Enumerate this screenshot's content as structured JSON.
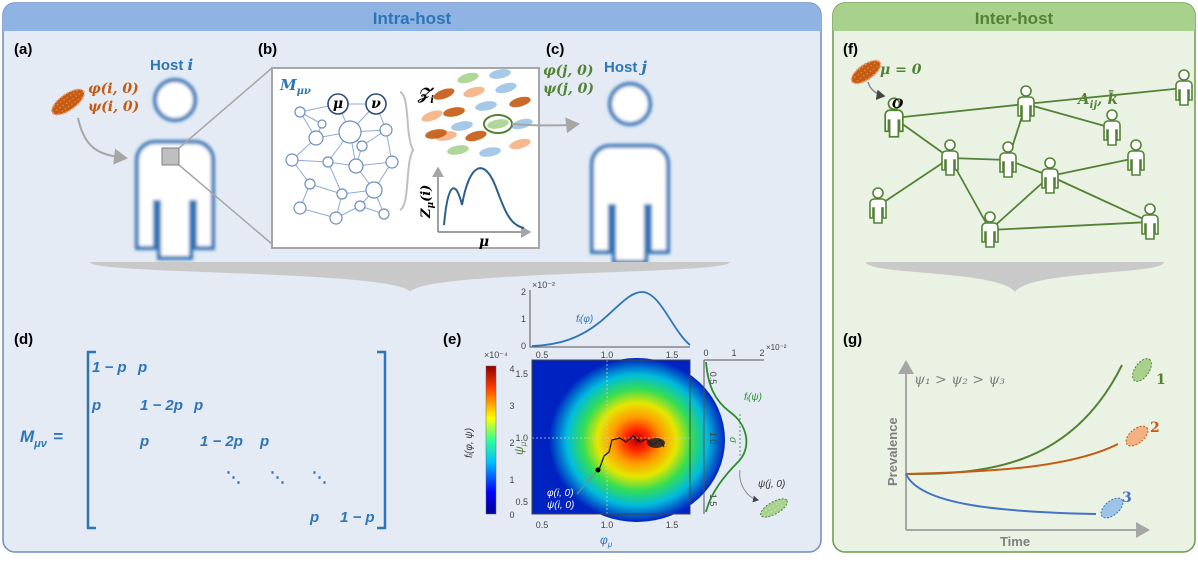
{
  "colors": {
    "intra_header": "#8FB4E3",
    "intra_bg": "#E4EBF5",
    "inter_header": "#A9D18E",
    "inter_bg": "#EAF2E3",
    "blue": "#2E75B6",
    "green": "#548235",
    "orange": "#C55A11",
    "gray": "#A6A6A6"
  },
  "headers": {
    "intra": "Intra-host",
    "inter": "Inter-host"
  },
  "panels": {
    "a": "(a)",
    "b": "(b)",
    "c": "(c)",
    "d": "(d)",
    "e": "(e)",
    "f": "(f)",
    "g": "(g)"
  },
  "panel_a": {
    "host_label": "Host ",
    "host_index": "i",
    "phi_label": "φ(i, 0)",
    "psi_label": "ψ(i, 0)"
  },
  "panel_b": {
    "matrix_label": "M",
    "matrix_sub": "μν",
    "node_mu": "μ",
    "node_nu": "ν",
    "pop_label": "𝒵",
    "pop_sub": "i",
    "curve_ylabel": "Z",
    "curve_ysub": "μ",
    "curve_yarg": "(i)",
    "curve_xlabel": "μ"
  },
  "panel_c": {
    "host_label": "Host ",
    "host_index": "j",
    "phi_label": "φ(j, 0)",
    "psi_label": "ψ(j, 0)"
  },
  "panel_d": {
    "lhs": "M",
    "lhs_sub": "μν",
    "equals": "=",
    "row1": [
      "1 − p",
      "p"
    ],
    "row2": [
      "p",
      "1 − 2p",
      "p"
    ],
    "row3": [
      "p",
      "1 − 2p",
      "p"
    ],
    "dots": [
      "⋱",
      "⋱",
      "⋱"
    ],
    "row_last": [
      "p",
      "1 − p"
    ]
  },
  "panel_e": {
    "top_exponent": "×10⁻²",
    "top_ticks_y": [
      "2",
      "1",
      "0"
    ],
    "top_ticks_x": [
      "0.5",
      "1.0",
      "1.5"
    ],
    "top_curve_label": "fᵢ(φ)",
    "main_ticks_x": [
      "0.5",
      "1.0",
      "1.5"
    ],
    "main_ticks_y": [
      "1.5",
      "1.0",
      "0.5"
    ],
    "main_xlabel": "φ",
    "main_xsub": "μ",
    "main_ylabel": "ψ",
    "main_ysub": "μ",
    "colorbar_exponent": "×10⁻⁴",
    "colorbar_ticks": [
      "4",
      "3",
      "2",
      "1",
      "0"
    ],
    "colorbar_label": "fᵢ(φ, ψ)",
    "start_phi": "φ(i, 0)",
    "start_psi": "ψ(i, 0)",
    "right_exponent": "×10⁻²",
    "right_ticks_top": [
      "0",
      "1",
      "2"
    ],
    "right_ticks_side": [
      "0.5",
      "1.0",
      "1.5"
    ],
    "right_curve_label": "fᵢ(ψ)",
    "right_sigma": "σ",
    "right_out_label": "ψ(j, 0)"
  },
  "panel_f": {
    "mu_label": "μ = 0",
    "origin_label": "O",
    "network_label": "A",
    "network_sub": "ij",
    "network_k": ", k̄"
  },
  "panel_g": {
    "condition_label": "ψ₁ > ψ₂ > ψ₃",
    "y_label": "Prevalence",
    "x_label": "Time",
    "curve1_label": "1",
    "curve2_label": "2",
    "curve3_label": "3"
  }
}
